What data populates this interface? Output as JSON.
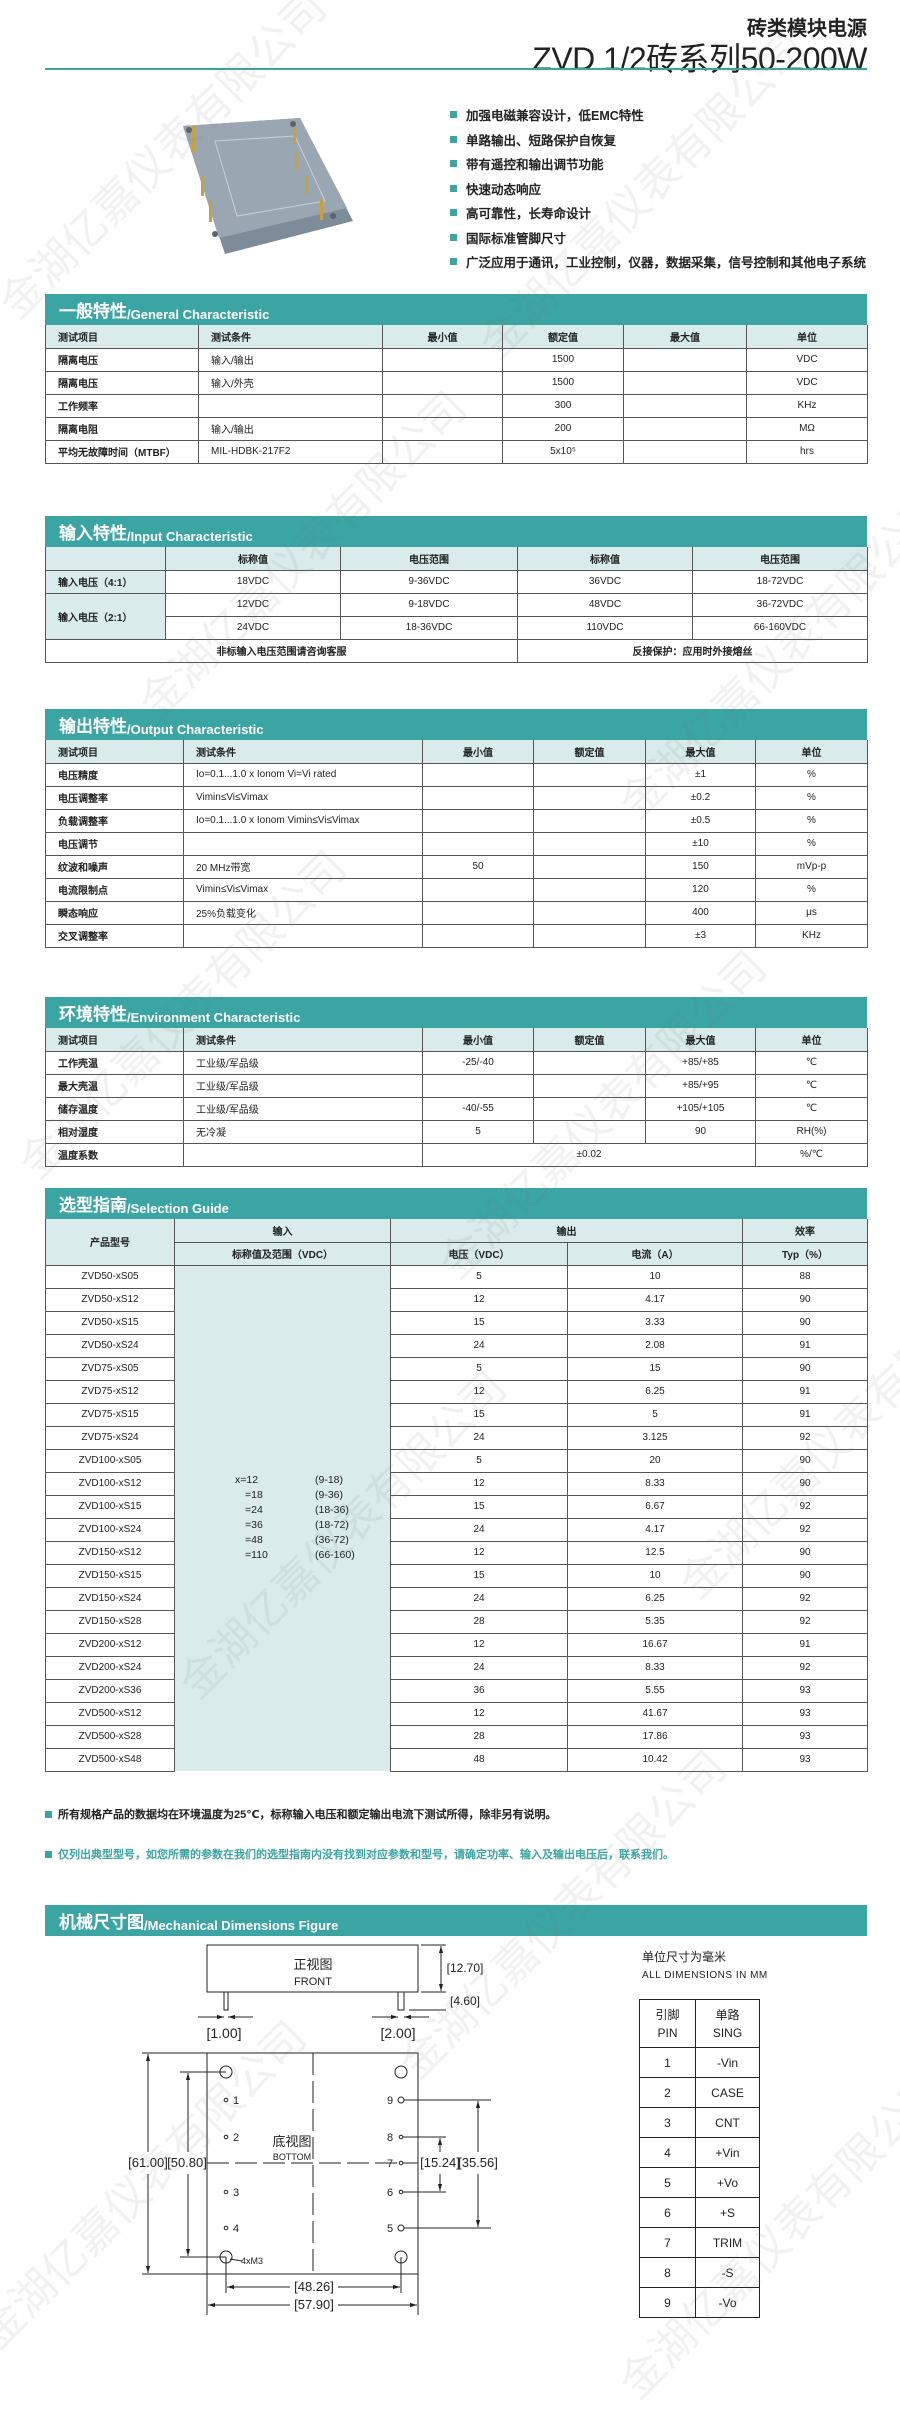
{
  "header": {
    "title_cn": "砖类模块电源",
    "title_main": "ZVD 1/2砖系列50-200W"
  },
  "watermark": "金湖亿嘉仪表有限公司",
  "colors": {
    "accent": "#3aa5a2",
    "header_bg": "#d9ebeb"
  },
  "features": [
    "加强电磁兼容设计，低EMC特性",
    "单路输出、短路保护自恢复",
    "带有遥控和输出调节功能",
    "快速动态响应",
    "高可靠性，长寿命设计",
    "国际标准管脚尺寸",
    "广泛应用于通讯，工业控制，仪器，数据采集，信号控制和其他电子系统"
  ],
  "general": {
    "title_cn": "一般特性",
    "title_en": "/General Characteristic",
    "headers": [
      "测试项目",
      "测试条件",
      "最小值",
      "额定值",
      "最大值",
      "单位"
    ],
    "rows": [
      [
        "隔离电压",
        "输入/输出",
        "",
        "1500",
        "",
        "VDC"
      ],
      [
        "隔离电压",
        "输入/外壳",
        "",
        "1500",
        "",
        "VDC"
      ],
      [
        "工作频率",
        "",
        "",
        "300",
        "",
        "KHz"
      ],
      [
        "隔离电阻",
        "输入/输出",
        "",
        "200",
        "",
        "MΩ"
      ],
      [
        "平均无故障时间（MTBF）",
        "MIL-HDBK-217F2",
        "",
        "5x10⁵",
        "",
        "hrs"
      ]
    ]
  },
  "input": {
    "title_cn": "输入特性",
    "title_en": "/Input Characteristic",
    "headers": [
      "",
      "标称值",
      "电压范围",
      "标称值",
      "电压范围"
    ],
    "row_4_1": {
      "label": "输入电压（4:1）",
      "cells": [
        "18VDC",
        "9-36VDC",
        "36VDC",
        "18-72VDC"
      ]
    },
    "row_2_1": {
      "label": "输入电压（2:1）",
      "cells_a": [
        "12VDC",
        "9-18VDC",
        "48VDC",
        "36-72VDC"
      ],
      "cells_b": [
        "24VDC",
        "18-36VDC",
        "110VDC",
        "66-160VDC"
      ]
    },
    "footer_left": "非标输入电压范围请咨询客服",
    "footer_right": "反接保护：应用时外接熔丝"
  },
  "output": {
    "title_cn": "输出特性",
    "title_en": "/Output Characteristic",
    "headers": [
      "测试项目",
      "测试条件",
      "最小值",
      "额定值",
      "最大值",
      "单位"
    ],
    "rows": [
      [
        "电压精度",
        "Io=0.1...1.0 x Ionom Vi=Vi rated",
        "",
        "",
        "±1",
        "%"
      ],
      [
        "电压调整率",
        "Vimin≤Vi≤Vimax",
        "",
        "",
        "±0.2",
        "%"
      ],
      [
        "负载调整率",
        "Io=0.1...1.0 x Ionom Vimin≤Vi≤Vimax",
        "",
        "",
        "±0.5",
        "%"
      ],
      [
        "电压调节",
        "",
        "",
        "",
        "±10",
        "%"
      ],
      [
        "纹波和噪声",
        "20 MHz带宽",
        "50",
        "",
        "150",
        "mVp-p"
      ],
      [
        "电流限制点",
        "Vimin≤Vi≤Vimax",
        "",
        "",
        "120",
        "%"
      ],
      [
        "瞬态响应",
        "25%负载变化",
        "",
        "",
        "400",
        "μs"
      ],
      [
        "交叉调整率",
        "",
        "",
        "",
        "±3",
        "KHz"
      ]
    ]
  },
  "environment": {
    "title_cn": "环境特性",
    "title_en": "/Environment Characteristic",
    "headers": [
      "测试项目",
      "测试条件",
      "最小值",
      "额定值",
      "最大值",
      "单位"
    ],
    "rows": [
      [
        "工作壳温",
        "工业级/军品级",
        "-25/-40",
        "",
        "+85/+85",
        "℃"
      ],
      [
        "最大壳温",
        "工业级/军品级",
        "",
        "",
        "+85/+95",
        "℃"
      ],
      [
        "储存温度",
        "工业级/军品级",
        "-40/-55",
        "",
        "+105/+105",
        "℃"
      ],
      [
        "相对湿度",
        "无冷凝",
        "5",
        "",
        "90",
        "RH(%)"
      ]
    ],
    "last_row": {
      "label": "温度系数",
      "condition": "",
      "value": "±0.02",
      "unit": "%/℃"
    }
  },
  "selection": {
    "title_cn": "选型指南",
    "title_en": "/Selection Guide",
    "h_model": "产品型号",
    "h_input": "输入",
    "h_output": "输出",
    "h_eff": "效率",
    "h_input_sub": "标称值及范围（VDC）",
    "h_voltage": "电压（VDC）",
    "h_current": "电流（A）",
    "h_typ": "Typ（%）",
    "input_ranges": [
      [
        "x=12",
        "(9-18)"
      ],
      [
        "=18",
        "(9-36)"
      ],
      [
        "=24",
        "(18-36)"
      ],
      [
        "=36",
        "(18-72)"
      ],
      [
        "=48",
        "(36-72)"
      ],
      [
        "=110",
        "(66-160)"
      ]
    ],
    "rows": [
      [
        "ZVD50-xS05",
        "5",
        "10",
        "88"
      ],
      [
        "ZVD50-xS12",
        "12",
        "4.17",
        "90"
      ],
      [
        "ZVD50-xS15",
        "15",
        "3.33",
        "90"
      ],
      [
        "ZVD50-xS24",
        "24",
        "2.08",
        "91"
      ],
      [
        "ZVD75-xS05",
        "5",
        "15",
        "90"
      ],
      [
        "ZVD75-xS12",
        "12",
        "6.25",
        "91"
      ],
      [
        "ZVD75-xS15",
        "15",
        "5",
        "91"
      ],
      [
        "ZVD75-xS24",
        "24",
        "3.125",
        "92"
      ],
      [
        "ZVD100-xS05",
        "5",
        "20",
        "90"
      ],
      [
        "ZVD100-xS12",
        "12",
        "8.33",
        "90"
      ],
      [
        "ZVD100-xS15",
        "15",
        "6.67",
        "92"
      ],
      [
        "ZVD100-xS24",
        "24",
        "4.17",
        "92"
      ],
      [
        "ZVD150-xS12",
        "12",
        "12.5",
        "90"
      ],
      [
        "ZVD150-xS15",
        "15",
        "10",
        "90"
      ],
      [
        "ZVD150-xS24",
        "24",
        "6.25",
        "92"
      ],
      [
        "ZVD150-xS28",
        "28",
        "5.35",
        "92"
      ],
      [
        "ZVD200-xS12",
        "12",
        "16.67",
        "91"
      ],
      [
        "ZVD200-xS24",
        "24",
        "8.33",
        "92"
      ],
      [
        "ZVD200-xS36",
        "36",
        "5.55",
        "93"
      ],
      [
        "ZVD500-xS12",
        "12",
        "41.67",
        "93"
      ],
      [
        "ZVD500-xS28",
        "28",
        "17.86",
        "93"
      ],
      [
        "ZVD500-xS48",
        "48",
        "10.42",
        "93"
      ]
    ]
  },
  "notes": [
    "所有规格产品的数据均在环境温度为25℃，标称输入电压和额定输出电流下测试所得，除非另有说明。",
    "仅列出典型型号，如您所需的参数在我们的选型指南内没有找到对应参数和型号，请确定功率、输入及输出电压后，联系我们。"
  ],
  "mechanical": {
    "title_cn": "机械尺寸图",
    "title_en": "/Mechanical Dimensions Figure",
    "front_cn": "正视图",
    "front_en": "FRONT",
    "bottom_cn": "底视图",
    "bottom_en": "BOTTOM",
    "dims": {
      "height": "[12.70]",
      "pin_len": "[4.60]",
      "pin_d1": "[1.00]",
      "pin_d2": "[2.00]",
      "total_h": "[61.00]",
      "hole_h": "[50.80]",
      "pin_s1": "[15.24]",
      "pin_s2": "[35.56]",
      "hole_w": "[48.26]",
      "total_w": "[57.90]",
      "mount": "4xM3"
    },
    "pin_labels": [
      "1",
      "2",
      "3",
      "4",
      "5",
      "6",
      "7",
      "8",
      "9"
    ],
    "units_cn": "单位尺寸为毫米",
    "units_en": "ALL DIMENSIONS IN MM",
    "pin_header": {
      "pin_cn": "引脚",
      "pin_en": "PIN",
      "sig_cn": "单路",
      "sig_en": "SING"
    },
    "pins": [
      [
        "1",
        "-Vin"
      ],
      [
        "2",
        "CASE"
      ],
      [
        "3",
        "CNT"
      ],
      [
        "4",
        "+Vin"
      ],
      [
        "5",
        "+Vo"
      ],
      [
        "6",
        "+S"
      ],
      [
        "7",
        "TRIM"
      ],
      [
        "8",
        "-S"
      ],
      [
        "9",
        "-Vo"
      ]
    ]
  }
}
